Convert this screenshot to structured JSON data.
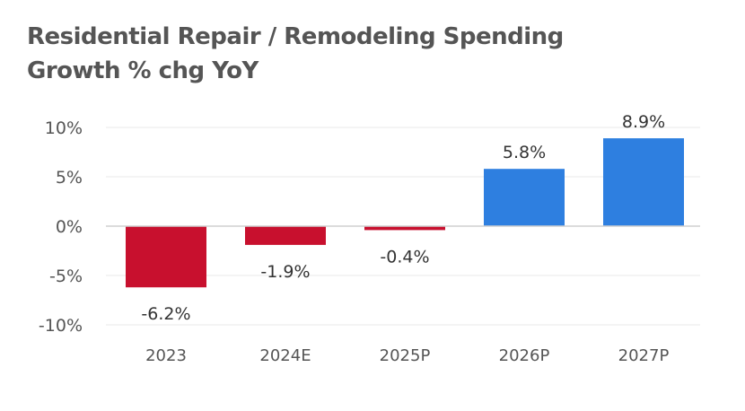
{
  "chart_data": {
    "type": "bar",
    "title": "Residential Repair / Remodeling Spending",
    "subtitle": "Growth % chg YoY",
    "categories": [
      "2023",
      "2024E",
      "2025P",
      "2026P",
      "2027P"
    ],
    "values": [
      -6.2,
      -1.9,
      -0.4,
      5.8,
      8.9
    ],
    "data_labels": [
      "-6.2%",
      "-1.9%",
      "-0.4%",
      "5.8%",
      "8.9%"
    ],
    "yticks": [
      10,
      5,
      0,
      -5,
      -10
    ],
    "ytick_labels": [
      "10%",
      "5%",
      "0%",
      "-5%",
      "-10%"
    ],
    "ylim": [
      -10,
      10
    ],
    "grid": true,
    "colors": {
      "negative": "#C8102E",
      "positive": "#2E7FE0"
    }
  }
}
